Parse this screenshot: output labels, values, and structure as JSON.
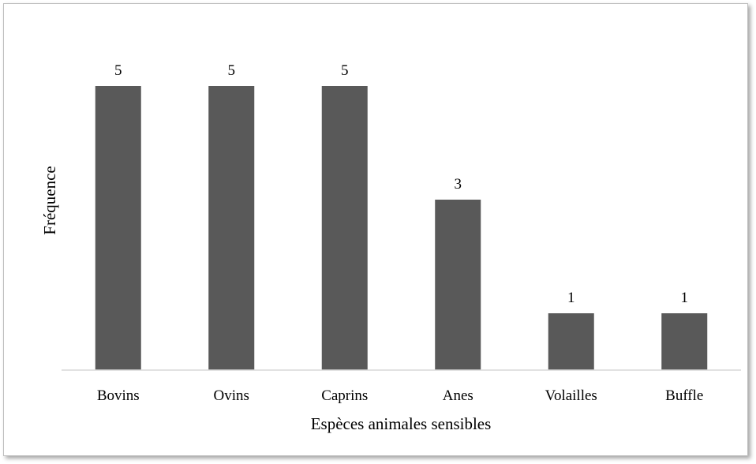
{
  "chart_data": {
    "type": "bar",
    "categories": [
      "Bovins",
      "Ovins",
      "Caprins",
      "Anes",
      "Volailles",
      "Buffle"
    ],
    "values": [
      5,
      5,
      5,
      3,
      1,
      1
    ],
    "title": "",
    "xlabel": "Espèces animales sensibles",
    "ylabel": "Fréquence",
    "ylim": [
      0,
      6
    ],
    "grid": false,
    "legend": "none",
    "data_labels": true,
    "colors": {
      "bar": "#595959",
      "axis": "#d9d9d9"
    }
  }
}
